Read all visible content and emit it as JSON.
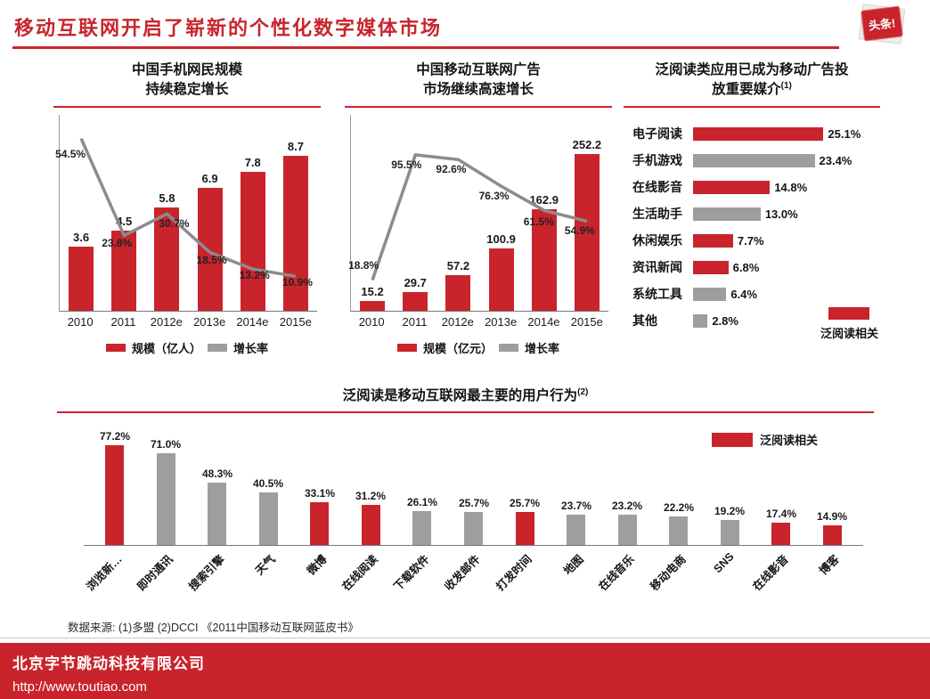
{
  "page": {
    "title": "移动互联网开启了崭新的个性化数字媒体市场",
    "logo_text": "头条!",
    "footnote": "数据来源: (1)多盟 (2)DCCI 《2011中国移动互联网蓝皮书》",
    "footer": {
      "company": "北京字节跳动科技有限公司",
      "url": "http://www.toutiao.com"
    },
    "colors": {
      "red": "#c9242c",
      "gray": "#9e9e9e",
      "line": "#8c8c8c"
    }
  },
  "chart_data": [
    {
      "type": "bar+line",
      "title_lines": [
        "中国手机网民规模",
        "持续稳定增长"
      ],
      "categories": [
        "2010",
        "2011",
        "2012e",
        "2013e",
        "2014e",
        "2015e"
      ],
      "series": [
        {
          "name": "规模（亿人）",
          "kind": "bar",
          "color": "red",
          "values": [
            3.6,
            4.5,
            5.8,
            6.9,
            7.8,
            8.7
          ],
          "labels": [
            "3.6",
            "4.5",
            "5.8",
            "6.9",
            "7.8",
            "8.7"
          ]
        },
        {
          "name": "增长率",
          "kind": "line",
          "color": "gray",
          "values": [
            54.5,
            23.8,
            30.7,
            18.5,
            13.2,
            10.9
          ],
          "labels": [
            "54.5%",
            "23.8%",
            "30.7%",
            "18.5%",
            "13.2%",
            "10.9%"
          ]
        }
      ],
      "bar_max": 11,
      "line_max": 62,
      "line_label_dx": [
        -12,
        -8,
        8,
        2,
        2,
        2
      ],
      "line_label_dy": [
        16,
        8,
        10,
        8,
        6,
        6
      ],
      "legend": [
        {
          "label": "规模（亿人）",
          "color": "red"
        },
        {
          "label": "增长率",
          "color": "gray"
        }
      ]
    },
    {
      "type": "bar+line",
      "title_lines": [
        "中国移动互联网广告",
        "市场继续高速增长"
      ],
      "categories": [
        "2010",
        "2011",
        "2012e",
        "2013e",
        "2014e",
        "2015e"
      ],
      "series": [
        {
          "name": "规模（亿元）",
          "kind": "bar",
          "color": "red",
          "values": [
            15.2,
            29.7,
            57.2,
            100.9,
            162.9,
            252.2
          ],
          "labels": [
            "15.2",
            "29.7",
            "57.2",
            "100.9",
            "162.9",
            "252.2"
          ]
        },
        {
          "name": "增长率",
          "kind": "line",
          "color": "gray",
          "values": [
            18.8,
            95.5,
            92.6,
            76.3,
            61.5,
            54.9
          ],
          "labels": [
            "18.8%",
            "95.5%",
            "92.6%",
            "76.3%",
            "61.5%",
            "54.9%"
          ]
        }
      ],
      "bar_max": 315,
      "line_max": 120,
      "line_label_dx": [
        -10,
        -10,
        -8,
        -8,
        -6,
        -8
      ],
      "line_label_dy": [
        -17,
        10,
        10,
        10,
        12,
        10
      ],
      "legend": [
        {
          "label": "规模（亿元）",
          "color": "red"
        },
        {
          "label": "增长率",
          "color": "gray"
        }
      ]
    },
    {
      "type": "hbar",
      "title_lines": [
        "泛阅读类应用已成为移动广告投",
        "放重要媒介"
      ],
      "title_sup": "(1)",
      "rows": [
        {
          "label": "电子阅读",
          "value": 25.1,
          "value_label": "25.1%",
          "color": "red"
        },
        {
          "label": "手机游戏",
          "value": 23.4,
          "value_label": "23.4%",
          "color": "gray"
        },
        {
          "label": "在线影音",
          "value": 14.8,
          "value_label": "14.8%",
          "color": "red"
        },
        {
          "label": "生活助手",
          "value": 13.0,
          "value_label": "13.0%",
          "color": "gray"
        },
        {
          "label": "休闲娱乐",
          "value": 7.7,
          "value_label": "7.7%",
          "color": "red"
        },
        {
          "label": "资讯新闻",
          "value": 6.8,
          "value_label": "6.8%",
          "color": "red"
        },
        {
          "label": "系统工具",
          "value": 6.4,
          "value_label": "6.4%",
          "color": "gray"
        },
        {
          "label": "其他",
          "value": 2.8,
          "value_label": "2.8%",
          "color": "gray"
        }
      ],
      "xmax": 36,
      "legend_label": "泛阅读相关",
      "legend_color": "red"
    },
    {
      "type": "bar",
      "title": "泛阅读是移动互联网最主要的用户行为",
      "title_sup": "(2)",
      "categories": [
        "浏览新…",
        "即时通讯",
        "搜索引擎",
        "天气",
        "微博",
        "在线阅读",
        "下载软件",
        "收发邮件",
        "打发时间",
        "地图",
        "在线音乐",
        "移动电商",
        "SNS",
        "在线影音",
        "博客"
      ],
      "values": [
        77.2,
        71.0,
        48.3,
        40.5,
        33.1,
        31.2,
        26.1,
        25.7,
        25.7,
        23.7,
        23.2,
        22.2,
        19.2,
        17.4,
        14.9
      ],
      "value_labels": [
        "77.2%",
        "71.0%",
        "48.3%",
        "40.5%",
        "33.1%",
        "31.2%",
        "26.1%",
        "25.7%",
        "25.7%",
        "23.7%",
        "23.2%",
        "22.2%",
        "19.2%",
        "17.4%",
        "14.9%"
      ],
      "colors": [
        "red",
        "gray",
        "gray",
        "gray",
        "red",
        "red",
        "gray",
        "gray",
        "red",
        "gray",
        "gray",
        "gray",
        "gray",
        "red",
        "red"
      ],
      "ymax": 90,
      "legend_label": "泛阅读相关",
      "legend_color": "red"
    }
  ]
}
